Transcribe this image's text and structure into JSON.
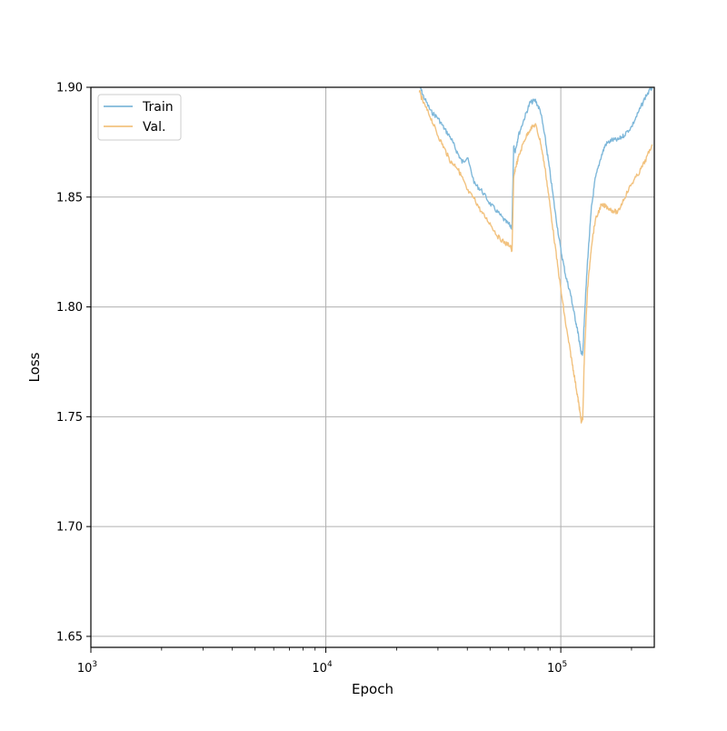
{
  "chart_data": {
    "type": "line",
    "title": "",
    "xlabel": "Epoch",
    "ylabel": "Loss",
    "xscale": "log",
    "xlim": [
      1000,
      250000
    ],
    "ylim": [
      1.645,
      1.9
    ],
    "grid": true,
    "legend_position": "top-left",
    "x_ticks": [
      {
        "value": 1000,
        "base": "10",
        "exp": "3"
      },
      {
        "value": 10000,
        "base": "10",
        "exp": "4"
      },
      {
        "value": 100000,
        "base": "10",
        "exp": "5"
      }
    ],
    "y_ticks": [
      {
        "value": 1.65,
        "label": "1.65"
      },
      {
        "value": 1.7,
        "label": "1.70"
      },
      {
        "value": 1.75,
        "label": "1.75"
      },
      {
        "value": 1.8,
        "label": "1.80"
      },
      {
        "value": 1.85,
        "label": "1.85"
      },
      {
        "value": 1.9,
        "label": "1.90"
      }
    ],
    "series": [
      {
        "name": "Train",
        "color": "#7fb8da",
        "x": [
          25000,
          26000,
          28000,
          30000,
          32000,
          34000,
          36000,
          38000,
          40000,
          43000,
          46000,
          50000,
          54000,
          58000,
          61000,
          62000,
          63000,
          64000,
          66000,
          70000,
          74000,
          78000,
          82000,
          86000,
          90000,
          95000,
          100000,
          105000,
          110000,
          114000,
          118000,
          120000,
          122000,
          124000,
          126000,
          130000,
          135000,
          140000,
          148000,
          155000,
          165000,
          175000,
          185000,
          200000,
          215000,
          230000,
          245000
        ],
        "y": [
          1.901,
          1.896,
          1.889,
          1.886,
          1.881,
          1.877,
          1.871,
          1.866,
          1.868,
          1.856,
          1.853,
          1.847,
          1.843,
          1.839,
          1.837,
          1.836,
          1.873,
          1.871,
          1.878,
          1.886,
          1.893,
          1.894,
          1.889,
          1.876,
          1.861,
          1.842,
          1.826,
          1.814,
          1.806,
          1.797,
          1.789,
          1.784,
          1.779,
          1.778,
          1.795,
          1.821,
          1.845,
          1.858,
          1.868,
          1.874,
          1.876,
          1.876,
          1.878,
          1.882,
          1.889,
          1.896,
          1.9
        ]
      },
      {
        "name": "Val.",
        "color": "#f2c27f",
        "x": [
          25000,
          26000,
          28000,
          30000,
          32000,
          34000,
          36000,
          38000,
          40000,
          43000,
          46000,
          50000,
          54000,
          58000,
          61000,
          62000,
          63000,
          64000,
          66000,
          70000,
          74000,
          78000,
          82000,
          86000,
          90000,
          95000,
          100000,
          105000,
          110000,
          114000,
          118000,
          120000,
          122000,
          124000,
          126000,
          130000,
          135000,
          140000,
          148000,
          155000,
          165000,
          175000,
          185000,
          200000,
          215000,
          230000,
          245000
        ],
        "y": [
          1.898,
          1.893,
          1.886,
          1.878,
          1.872,
          1.866,
          1.864,
          1.859,
          1.853,
          1.849,
          1.843,
          1.838,
          1.832,
          1.829,
          1.828,
          1.825,
          1.858,
          1.863,
          1.868,
          1.876,
          1.881,
          1.883,
          1.875,
          1.862,
          1.846,
          1.826,
          1.808,
          1.792,
          1.779,
          1.769,
          1.759,
          1.754,
          1.748,
          1.749,
          1.778,
          1.808,
          1.828,
          1.839,
          1.846,
          1.846,
          1.844,
          1.843,
          1.849,
          1.856,
          1.861,
          1.867,
          1.874
        ]
      }
    ]
  }
}
